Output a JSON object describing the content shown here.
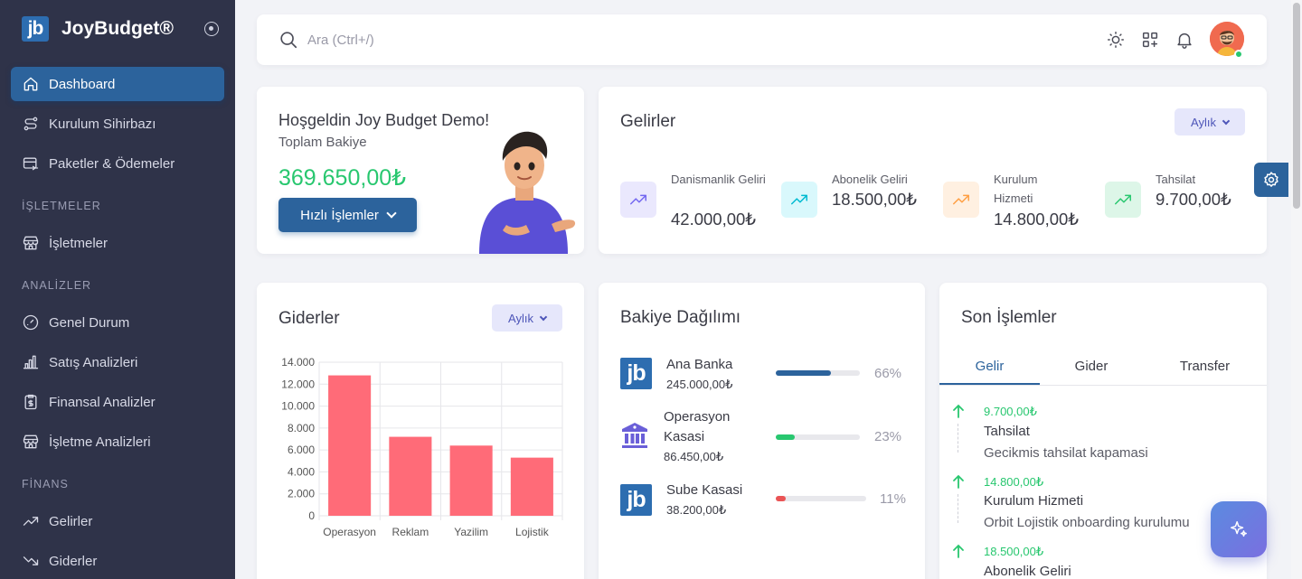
{
  "brand": {
    "logo_text": "jb",
    "name": "JoyBudget®"
  },
  "sidebar": {
    "items": [
      {
        "label": "Dashboard",
        "icon": "home-icon"
      },
      {
        "label": "Kurulum Sihirbazı",
        "icon": "route-icon"
      },
      {
        "label": "Paketler & Ödemeler",
        "icon": "credit-card-icon"
      },
      {
        "label": "İşletmeler",
        "icon": "store-icon"
      },
      {
        "label": "Genel Durum",
        "icon": "gauge-icon"
      },
      {
        "label": "Satış Analizleri",
        "icon": "bar-chart-icon"
      },
      {
        "label": "Finansal Analizler",
        "icon": "receipt-icon"
      },
      {
        "label": "İşletme Analizleri",
        "icon": "store-icon"
      },
      {
        "label": "Gelirler",
        "icon": "trending-up-icon"
      },
      {
        "label": "Giderler",
        "icon": "trending-down-icon"
      }
    ],
    "sections": {
      "isletmeler": "İŞLETMELER",
      "analizler": "ANALİZLER",
      "finans": "FİNANS"
    }
  },
  "search": {
    "placeholder": "Ara (Ctrl+/)"
  },
  "welcome": {
    "title": "Hoşgeldin Joy Budget Demo!",
    "subtitle": "Toplam Bakiye",
    "amount": "369.650,00₺",
    "button": "Hızlı İşlemler"
  },
  "gelirler": {
    "title": "Gelirler",
    "period": "Aylık",
    "items": [
      {
        "label": "Danismanlik Geliri",
        "value": "42.000,00₺",
        "color": "#7367f0",
        "bg": "#eae8fd"
      },
      {
        "label": "Abonelik Geliri",
        "value": "18.500,00₺",
        "color": "#00bad1",
        "bg": "#d9f8fc"
      },
      {
        "label": "Kurulum Hizmeti",
        "value": "14.800,00₺",
        "color": "#ff9f43",
        "bg": "#fff0e1"
      },
      {
        "label": "Tahsilat",
        "value": "9.700,00₺",
        "color": "#28c76f",
        "bg": "#ddf6e8"
      }
    ]
  },
  "giderler": {
    "title": "Giderler",
    "period": "Aylık"
  },
  "chart_data": {
    "type": "bar",
    "categories": [
      "Operasyon",
      "Reklam",
      "Yazilim",
      "Lojistik"
    ],
    "values": [
      12800,
      7200,
      6400,
      5300
    ],
    "ylim": [
      0,
      14000
    ],
    "yticks": [
      "0",
      "2.000",
      "4.000",
      "6.000",
      "8.000",
      "10.000",
      "12.000",
      "14.000"
    ],
    "grid": true,
    "color": "#ff6b78"
  },
  "bakiye": {
    "title": "Bakiye Dağılımı",
    "rows": [
      {
        "name": "Ana Banka",
        "amount": "245.000,00₺",
        "pct": "66%",
        "fraction": 0.66,
        "color": "#2c639c"
      },
      {
        "name": "Operasyon Kasasi",
        "amount": "86.450,00₺",
        "pct": "23%",
        "fraction": 0.23,
        "color": "#28c76f"
      },
      {
        "name": "Sube Kasasi",
        "amount": "38.200,00₺",
        "pct": "11%",
        "fraction": 0.11,
        "color": "#ea5455"
      }
    ]
  },
  "son_islemler": {
    "title": "Son İşlemler",
    "tabs": [
      "Gelir",
      "Gider",
      "Transfer"
    ],
    "items": [
      {
        "amount": "9.700,00₺",
        "title": "Tahsilat",
        "desc": "Gecikmis tahsilat kapamasi"
      },
      {
        "amount": "14.800,00₺",
        "title": "Kurulum Hizmeti",
        "desc": "Orbit Lojistik onboarding kurulumu"
      },
      {
        "amount": "18.500,00₺",
        "title": "Abonelik Geliri",
        "desc": ""
      }
    ]
  }
}
